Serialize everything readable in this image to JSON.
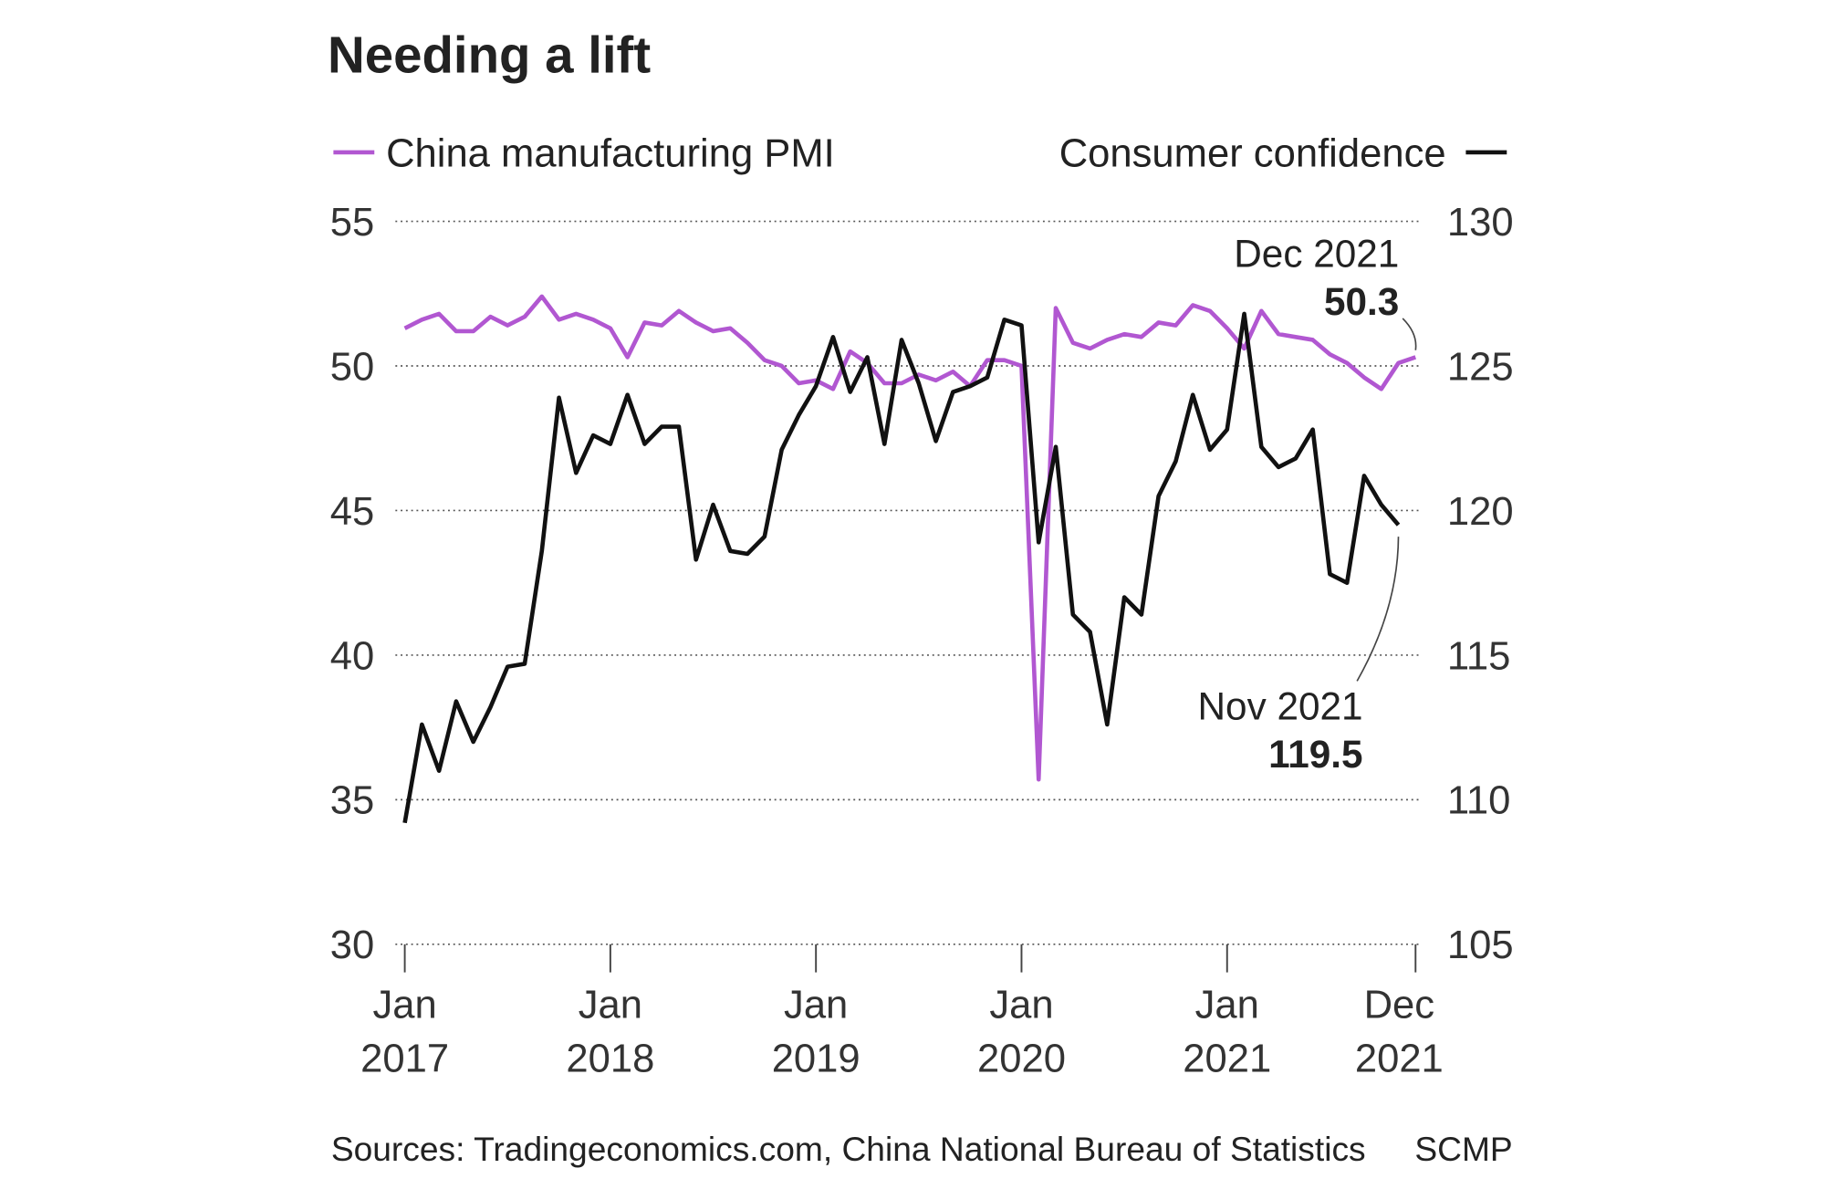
{
  "chart_data": {
    "type": "line",
    "title": "Needing a lift",
    "source": "Sources: Tradingeconomics.com, China National Bureau of Statistics",
    "credit": "SCMP",
    "x": [
      "2017-01",
      "2017-02",
      "2017-03",
      "2017-04",
      "2017-05",
      "2017-06",
      "2017-07",
      "2017-08",
      "2017-09",
      "2017-10",
      "2017-11",
      "2017-12",
      "2018-01",
      "2018-02",
      "2018-03",
      "2018-04",
      "2018-05",
      "2018-06",
      "2018-07",
      "2018-08",
      "2018-09",
      "2018-10",
      "2018-11",
      "2018-12",
      "2019-01",
      "2019-02",
      "2019-03",
      "2019-04",
      "2019-05",
      "2019-06",
      "2019-07",
      "2019-08",
      "2019-09",
      "2019-10",
      "2019-11",
      "2019-12",
      "2020-01",
      "2020-02",
      "2020-03",
      "2020-04",
      "2020-05",
      "2020-06",
      "2020-07",
      "2020-08",
      "2020-09",
      "2020-10",
      "2020-11",
      "2020-12",
      "2021-01",
      "2021-02",
      "2021-03",
      "2021-04",
      "2021-05",
      "2021-06",
      "2021-07",
      "2021-08",
      "2021-09",
      "2021-10",
      "2021-11",
      "2021-12"
    ],
    "series": [
      {
        "name": "China manufacturing PMI",
        "color": "#b157d1",
        "values": [
          51.3,
          51.6,
          51.8,
          51.2,
          51.2,
          51.7,
          51.4,
          51.7,
          52.4,
          51.6,
          51.8,
          51.6,
          51.3,
          50.3,
          51.5,
          51.4,
          51.9,
          51.5,
          51.2,
          51.3,
          50.8,
          50.2,
          50.0,
          49.4,
          49.5,
          49.2,
          50.5,
          50.1,
          49.4,
          49.4,
          49.7,
          49.5,
          49.8,
          49.3,
          50.2,
          50.2,
          50.0,
          35.7,
          52.0,
          50.8,
          50.6,
          50.9,
          51.1,
          51.0,
          51.5,
          51.4,
          52.1,
          51.9,
          51.3,
          50.6,
          51.9,
          51.1,
          51.0,
          50.9,
          50.4,
          50.1,
          49.6,
          49.2,
          50.1,
          50.3
        ]
      },
      {
        "name": "Consumer confidence",
        "color": "#111111",
        "axis": "y2",
        "values": [
          109.2,
          112.6,
          111.0,
          113.4,
          112.0,
          113.2,
          114.6,
          114.7,
          118.6,
          123.9,
          121.3,
          122.6,
          122.3,
          124.0,
          122.3,
          122.9,
          122.9,
          118.3,
          120.2,
          118.6,
          118.5,
          119.1,
          122.1,
          123.3,
          124.3,
          126.0,
          124.1,
          125.3,
          122.3,
          125.9,
          124.4,
          122.4,
          124.1,
          124.3,
          124.6,
          126.6,
          126.4,
          118.9,
          122.2,
          116.4,
          115.8,
          112.6,
          117.0,
          116.4,
          120.5,
          121.7,
          124.0,
          122.1,
          122.8,
          126.8,
          122.2,
          121.5,
          121.8,
          122.8,
          117.8,
          117.5,
          121.2,
          120.2,
          119.5,
          null
        ]
      }
    ],
    "annotations": [
      "Dec 2021",
      "Nov 2021"
    ],
    "ylim": [
      30,
      55
    ],
    "yticks": [
      30,
      35,
      40,
      45,
      50,
      55
    ],
    "y2lim": [
      105,
      130
    ],
    "y2ticks": [
      105,
      110,
      115,
      120,
      125,
      130
    ],
    "xticks": [
      {
        "value": "2017-01",
        "label": "Jan 2017"
      },
      {
        "value": "2018-01",
        "label": "Jan 2018"
      },
      {
        "value": "2019-01",
        "label": "Jan 2019"
      },
      {
        "value": "2020-01",
        "label": "Jan 2020"
      },
      {
        "value": "2021-01",
        "label": "Jan 2021"
      },
      {
        "value": "2021-12",
        "label": "Dec 2021"
      }
    ],
    "grid": true
  }
}
